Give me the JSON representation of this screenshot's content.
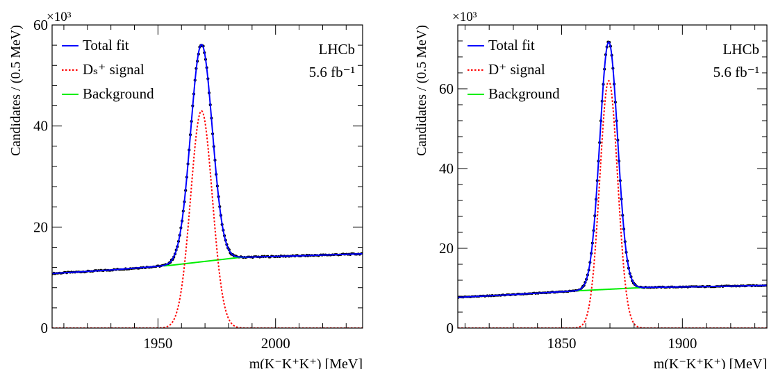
{
  "chart_data": [
    {
      "type": "line",
      "xlabel": "m(K⁻K⁺K⁺) [MeV]",
      "ylabel": "Candidates / (0.5 MeV)",
      "y_multiplier": "×10³",
      "experiment": "LHCb",
      "luminosity": "5.6 fb⁻¹",
      "xlim": [
        1905,
        2037
      ],
      "ylim": [
        0,
        60000
      ],
      "x_ticks": [
        "1950",
        "2000"
      ],
      "y_ticks": [
        "0",
        "20",
        "40",
        "60"
      ],
      "legend": [
        "Total fit",
        "Dₛ⁺ signal",
        "Background"
      ],
      "legend_placement": "top-left",
      "peak_mass": 1968.5,
      "peak_width": 4.6,
      "signal_peak": 43000,
      "background_start": 10800,
      "background_end": 14700,
      "background_shape": [
        {
          "x": 1905,
          "y": 10800
        },
        {
          "x": 1930,
          "y": 11500
        },
        {
          "x": 1955,
          "y": 12400
        },
        {
          "x": 1985,
          "y": 14000
        },
        {
          "x": 2010,
          "y": 14300
        },
        {
          "x": 2037,
          "y": 14700
        }
      ],
      "series": [
        {
          "name": "Total fit",
          "color": "#0000ff",
          "style": "solid"
        },
        {
          "name": "Dₛ⁺ signal",
          "color": "#ff0000",
          "style": "dotted"
        },
        {
          "name": "Background",
          "color": "#00ee00",
          "style": "solid"
        }
      ]
    },
    {
      "type": "line",
      "xlabel": "m(K⁻K⁺K⁺) [MeV]",
      "ylabel": "Candidates / (0.5 MeV)",
      "y_multiplier": "×10³",
      "experiment": "LHCb",
      "luminosity": "5.6 fb⁻¹",
      "xlim": [
        1807,
        1935
      ],
      "ylim": [
        0,
        76000
      ],
      "x_ticks": [
        "1850",
        "1900"
      ],
      "y_ticks": [
        "0",
        "20",
        "40",
        "60"
      ],
      "legend": [
        "Total fit",
        "D⁺ signal",
        "Background"
      ],
      "legend_placement": "top-left",
      "peak_mass": 1869.5,
      "peak_width": 3.7,
      "signal_peak": 62000,
      "background_start": 7700,
      "background_end": 10700,
      "background_shape": [
        {
          "x": 1807,
          "y": 7700
        },
        {
          "x": 1830,
          "y": 8400
        },
        {
          "x": 1855,
          "y": 9300
        },
        {
          "x": 1885,
          "y": 10200
        },
        {
          "x": 1910,
          "y": 10400
        },
        {
          "x": 1935,
          "y": 10700
        }
      ],
      "series": [
        {
          "name": "Total fit",
          "color": "#0000ff",
          "style": "solid"
        },
        {
          "name": "D⁺ signal",
          "color": "#ff0000",
          "style": "dotted"
        },
        {
          "name": "Background",
          "color": "#00ee00",
          "style": "solid"
        }
      ]
    }
  ]
}
